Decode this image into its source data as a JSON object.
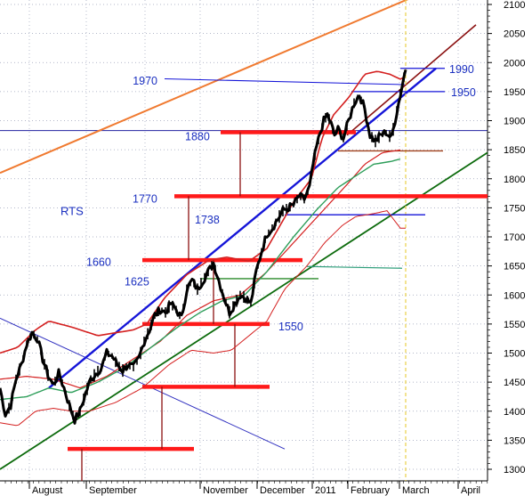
{
  "chart_data": {
    "type": "line",
    "title": "",
    "xlabel": "",
    "ylabel": "",
    "series_label": "RTS",
    "ylim": [
      1285,
      2115
    ],
    "y_ticks": [
      1300,
      1350,
      1400,
      1450,
      1500,
      1550,
      1600,
      1650,
      1700,
      1750,
      1800,
      1850,
      1900,
      1950,
      2000,
      2050,
      2100
    ],
    "month_labels": [
      "August",
      "September",
      "November",
      "December",
      "2011",
      "February",
      "March",
      "April"
    ],
    "level_labels": [
      "1970",
      "1990",
      "1950",
      "1880",
      "1770",
      "1738",
      "1660",
      "1625",
      "1550"
    ],
    "colors": {
      "price": "#000000",
      "bollinger_red": "#d42020",
      "ma_green": "#2e9e5a",
      "support": "#ff1a1a",
      "trend_blue": "#1515d8",
      "channel_orange": "#f07a30",
      "channel_darkred": "#8b1212",
      "trend_darkgreen": "#0d6b0d",
      "text_blue": "#1a2fc0",
      "grid": "#9aa0b8"
    }
  }
}
